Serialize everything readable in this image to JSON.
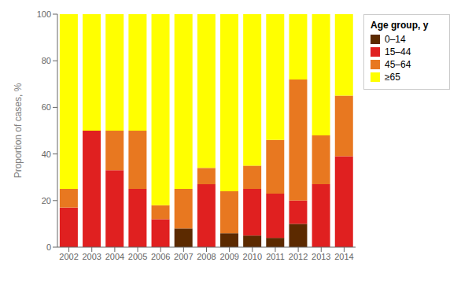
{
  "chart_data": {
    "type": "bar",
    "stacked": true,
    "categories": [
      "2002",
      "2003",
      "2004",
      "2005",
      "2006",
      "2007",
      "2008",
      "2009",
      "2010",
      "2011",
      "2012",
      "2013",
      "2014"
    ],
    "series": [
      {
        "name": "0–14",
        "color": "#5c2a00",
        "values": [
          0,
          0,
          0,
          0,
          0,
          8,
          0,
          6,
          5,
          4,
          10,
          0,
          0
        ]
      },
      {
        "name": "15–44",
        "color": "#e02020",
        "values": [
          17,
          50,
          33,
          25,
          12,
          0,
          27,
          0,
          20,
          19,
          10,
          27,
          39
        ]
      },
      {
        "name": "45–64",
        "color": "#e87820",
        "values": [
          8,
          0,
          17,
          25,
          6,
          17,
          7,
          18,
          10,
          23,
          52,
          21,
          26
        ]
      },
      {
        "name": "≥65",
        "color": "#ffff00",
        "values": [
          75,
          50,
          50,
          50,
          82,
          75,
          66,
          76,
          65,
          54,
          28,
          52,
          35
        ]
      }
    ],
    "ylabel": "Proportion of cases, %",
    "ylim": [
      0,
      100
    ],
    "yticks": [
      0,
      20,
      40,
      60,
      80,
      100
    ],
    "grid": false,
    "legend": "upper right",
    "legend_title": "Age group, y"
  }
}
